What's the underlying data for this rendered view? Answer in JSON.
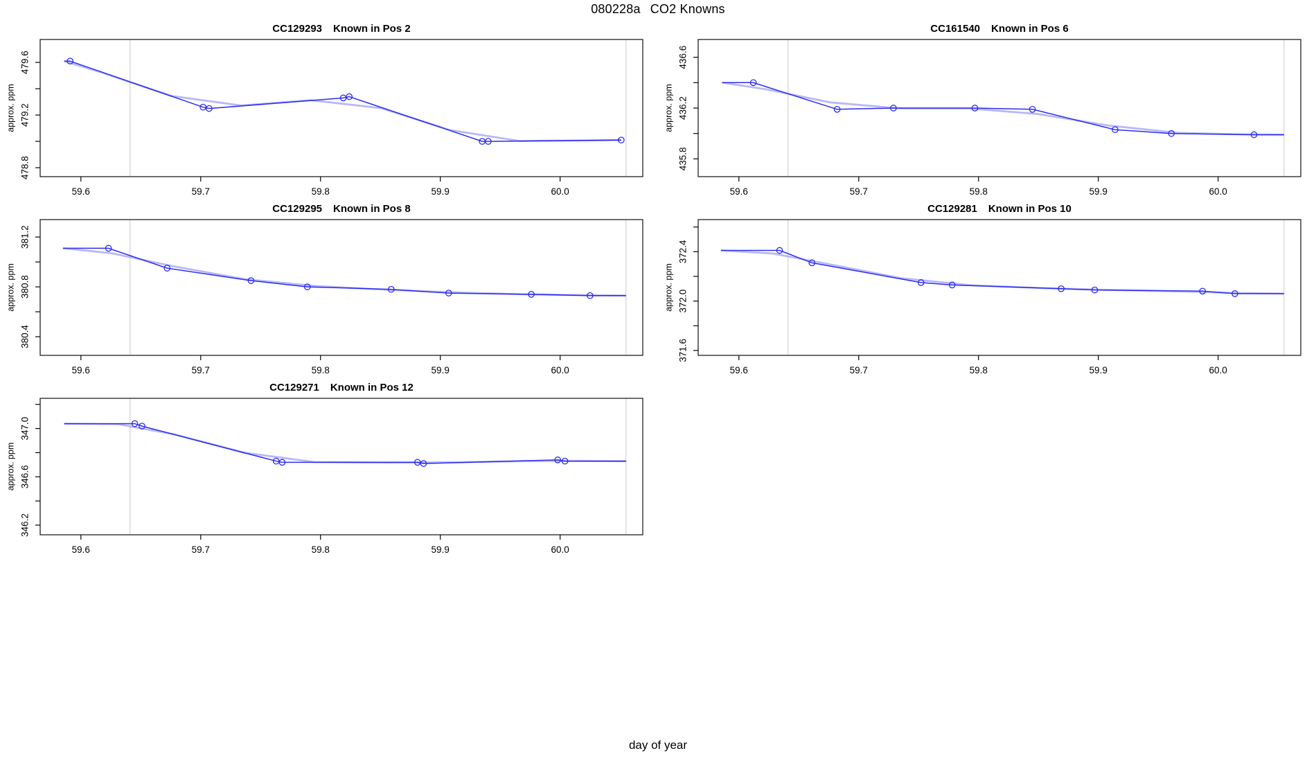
{
  "figure": {
    "title_left": "080228a",
    "title_right": "CO2 Knowns",
    "outer_xlabel": "day of year"
  },
  "style": {
    "line_color": "#2b2bf0",
    "smooth_color": "#a6a6f7",
    "ref_line_color": "#d6d6d6",
    "box_color": "#1f1f1f",
    "tick_color": "#000000",
    "background": "#ffffff"
  },
  "chart_data": [
    {
      "type": "line",
      "code": "CC129293",
      "pos_label": "Known in Pos 2",
      "ylabel": "approx. ppm",
      "row": 0,
      "col": 0,
      "xlim": [
        59.566,
        60.069
      ],
      "ylim": [
        478.732,
        479.774
      ],
      "xticks": [
        {
          "v": 59.6,
          "label": "59.6"
        },
        {
          "v": 59.7,
          "label": "59.7"
        },
        {
          "v": 59.8,
          "label": "59.8"
        },
        {
          "v": 59.9,
          "label": "59.9"
        },
        {
          "v": 60.0,
          "label": "60.0"
        }
      ],
      "yticks": [
        {
          "v": 478.8,
          "label": "478.8"
        },
        {
          "v": 479.0,
          "label": ""
        },
        {
          "v": 479.2,
          "label": "479.2"
        },
        {
          "v": 479.4,
          "label": ""
        },
        {
          "v": 479.6,
          "label": "479.6"
        }
      ],
      "ref_lines_x": [
        59.641,
        60.055
      ],
      "x": [
        59.586,
        59.591,
        59.702,
        59.707,
        59.819,
        59.824,
        59.935,
        59.94,
        60.051
      ],
      "y": [
        479.61,
        479.61,
        479.26,
        479.25,
        479.33,
        479.34,
        479.0,
        479.0,
        479.01
      ],
      "marker": [
        0,
        1,
        1,
        1,
        1,
        1,
        1,
        1,
        1
      ]
    },
    {
      "type": "line",
      "code": "CC161540",
      "pos_label": "Known in Pos 6",
      "ylabel": "approx. ppm",
      "row": 0,
      "col": 1,
      "xlim": [
        59.566,
        60.069
      ],
      "ylim": [
        435.66,
        436.74
      ],
      "xticks": [
        {
          "v": 59.6,
          "label": "59.6"
        },
        {
          "v": 59.7,
          "label": "59.7"
        },
        {
          "v": 59.8,
          "label": "59.8"
        },
        {
          "v": 59.9,
          "label": "59.9"
        },
        {
          "v": 60.0,
          "label": "60.0"
        }
      ],
      "yticks": [
        {
          "v": 435.8,
          "label": "435.8"
        },
        {
          "v": 436.0,
          "label": ""
        },
        {
          "v": 436.2,
          "label": "436.2"
        },
        {
          "v": 436.4,
          "label": ""
        },
        {
          "v": 436.6,
          "label": "436.6"
        }
      ],
      "ref_lines_x": [
        59.641,
        60.055
      ],
      "x": [
        59.586,
        59.612,
        59.682,
        59.729,
        59.797,
        59.845,
        59.914,
        59.961,
        60.03,
        60.055
      ],
      "y": [
        436.4,
        436.4,
        436.19,
        436.2,
        436.2,
        436.19,
        436.03,
        436.0,
        435.99,
        435.99
      ],
      "marker": [
        0,
        1,
        1,
        1,
        1,
        1,
        1,
        1,
        1,
        0
      ]
    },
    {
      "type": "line",
      "code": "CC129295",
      "pos_label": "Known in Pos 8",
      "ylabel": "approx. ppm",
      "row": 1,
      "col": 0,
      "xlim": [
        59.566,
        60.069
      ],
      "ylim": [
        380.25,
        381.34
      ],
      "xticks": [
        {
          "v": 59.6,
          "label": "59.6"
        },
        {
          "v": 59.7,
          "label": "59.7"
        },
        {
          "v": 59.8,
          "label": "59.8"
        },
        {
          "v": 59.9,
          "label": "59.9"
        },
        {
          "v": 60.0,
          "label": "60.0"
        }
      ],
      "yticks": [
        {
          "v": 380.4,
          "label": "380.4"
        },
        {
          "v": 380.6,
          "label": ""
        },
        {
          "v": 380.8,
          "label": "380.8"
        },
        {
          "v": 381.0,
          "label": ""
        },
        {
          "v": 381.2,
          "label": "381.2"
        }
      ],
      "ref_lines_x": [
        59.641,
        60.055
      ],
      "x": [
        59.585,
        59.623,
        59.672,
        59.742,
        59.789,
        59.859,
        59.907,
        59.976,
        60.025,
        60.055
      ],
      "y": [
        381.11,
        381.11,
        380.95,
        380.85,
        380.8,
        380.78,
        380.75,
        380.74,
        380.73,
        380.73
      ],
      "marker": [
        0,
        1,
        1,
        1,
        1,
        1,
        1,
        1,
        1,
        0
      ]
    },
    {
      "type": "line",
      "code": "CC129281",
      "pos_label": "Known in Pos 10",
      "ylabel": "approx. ppm",
      "row": 1,
      "col": 1,
      "xlim": [
        59.566,
        60.069
      ],
      "ylim": [
        371.56,
        372.66
      ],
      "xticks": [
        {
          "v": 59.6,
          "label": "59.6"
        },
        {
          "v": 59.7,
          "label": "59.7"
        },
        {
          "v": 59.8,
          "label": "59.8"
        },
        {
          "v": 59.9,
          "label": "59.9"
        },
        {
          "v": 60.0,
          "label": "60.0"
        }
      ],
      "yticks": [
        {
          "v": 371.6,
          "label": "371.6"
        },
        {
          "v": 371.8,
          "label": ""
        },
        {
          "v": 372.0,
          "label": "372.0"
        },
        {
          "v": 372.2,
          "label": ""
        },
        {
          "v": 372.4,
          "label": "372.4"
        },
        {
          "v": 372.6,
          "label": ""
        }
      ],
      "ref_lines_x": [
        59.641,
        60.055
      ],
      "x": [
        59.585,
        59.634,
        59.661,
        59.752,
        59.778,
        59.869,
        59.897,
        59.987,
        60.014,
        60.055
      ],
      "y": [
        372.41,
        372.41,
        372.31,
        372.15,
        372.13,
        372.1,
        372.09,
        372.08,
        372.06,
        372.06
      ],
      "marker": [
        0,
        1,
        1,
        1,
        1,
        1,
        1,
        1,
        1,
        0
      ]
    },
    {
      "type": "line",
      "code": "CC129271",
      "pos_label": "Known in Pos 12",
      "ylabel": "approx. ppm",
      "row": 2,
      "col": 0,
      "xlim": [
        59.566,
        60.069
      ],
      "ylim": [
        346.12,
        347.25
      ],
      "xticks": [
        {
          "v": 59.6,
          "label": "59.6"
        },
        {
          "v": 59.7,
          "label": "59.7"
        },
        {
          "v": 59.8,
          "label": "59.8"
        },
        {
          "v": 59.9,
          "label": "59.9"
        },
        {
          "v": 60.0,
          "label": "60.0"
        }
      ],
      "yticks": [
        {
          "v": 346.2,
          "label": "346.2"
        },
        {
          "v": 346.4,
          "label": ""
        },
        {
          "v": 346.6,
          "label": "346.6"
        },
        {
          "v": 346.8,
          "label": ""
        },
        {
          "v": 347.0,
          "label": "347.0"
        },
        {
          "v": 347.2,
          "label": ""
        }
      ],
      "ref_lines_x": [
        59.641,
        60.055
      ],
      "x": [
        59.586,
        59.645,
        59.651,
        59.763,
        59.768,
        59.881,
        59.886,
        59.998,
        60.004,
        60.055
      ],
      "y": [
        347.04,
        347.04,
        347.02,
        346.73,
        346.72,
        346.72,
        346.71,
        346.74,
        346.73,
        346.73
      ],
      "marker": [
        0,
        1,
        1,
        1,
        1,
        1,
        1,
        1,
        1,
        0
      ]
    }
  ]
}
